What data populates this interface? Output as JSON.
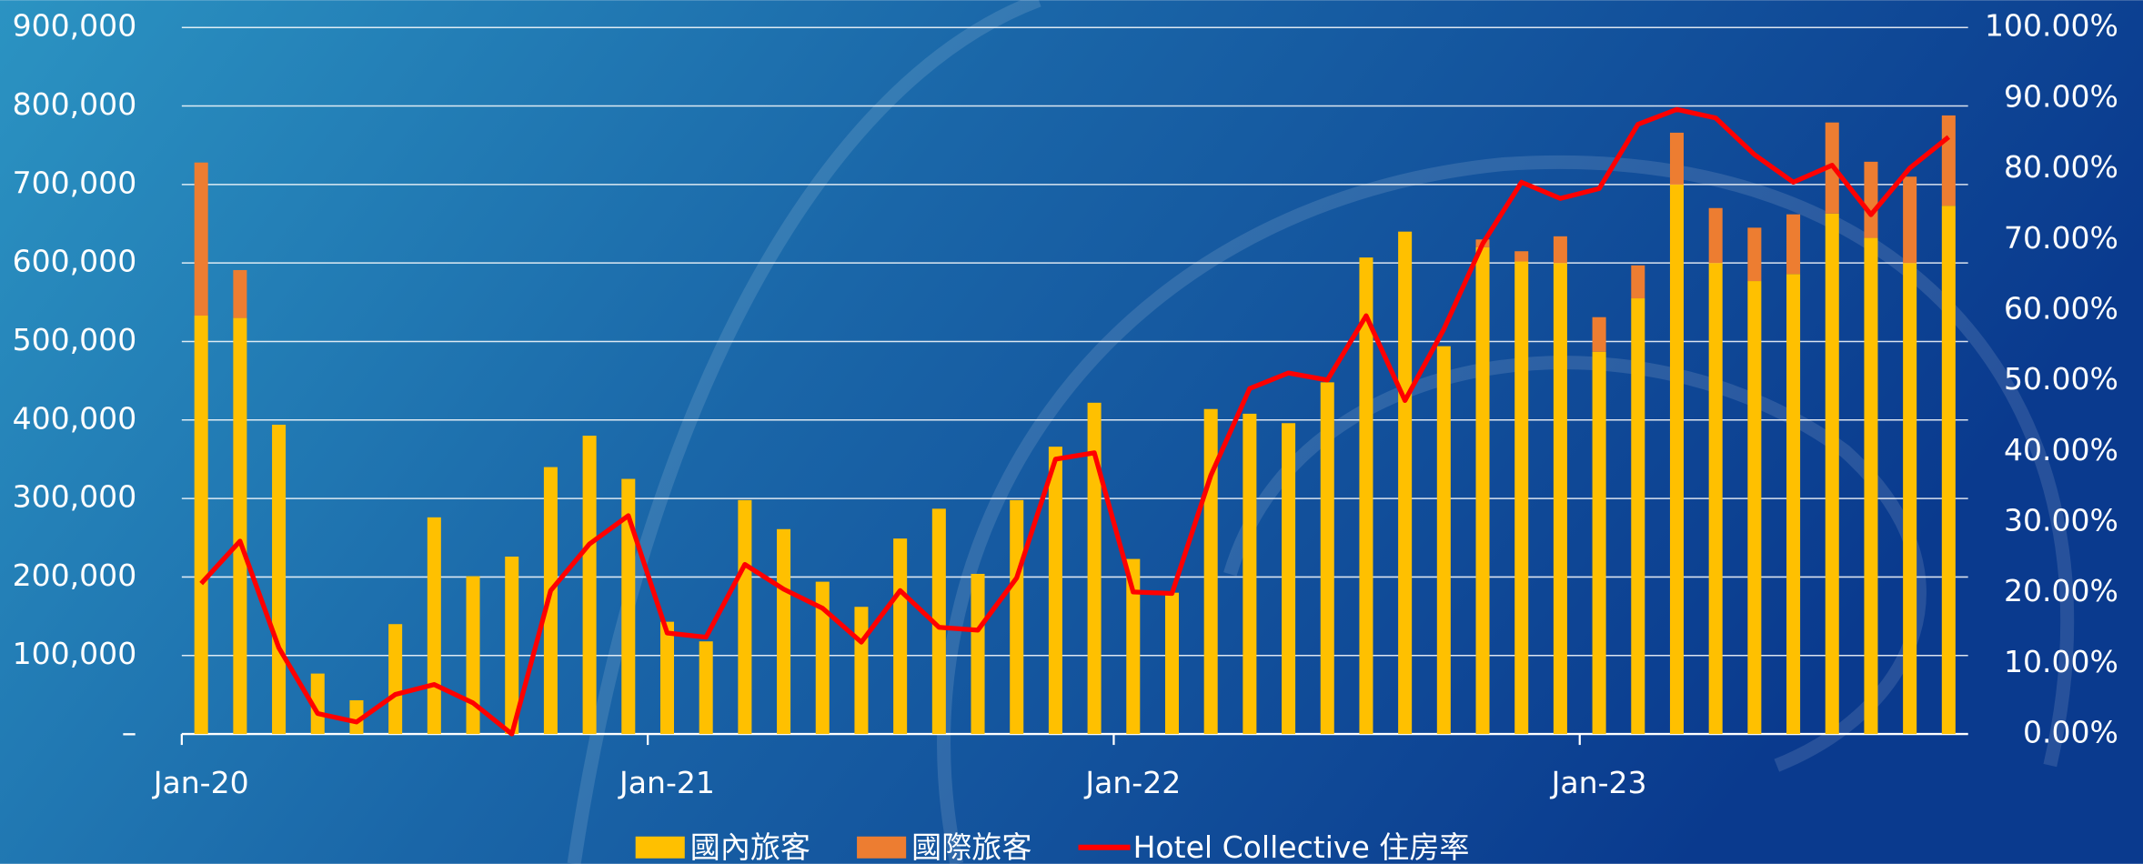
{
  "chart_data": {
    "type": "bar",
    "stacked": true,
    "categories": [
      "Jan-20",
      null,
      null,
      null,
      null,
      null,
      null,
      null,
      null,
      null,
      null,
      null,
      "Jan-21",
      null,
      null,
      null,
      null,
      null,
      null,
      null,
      null,
      null,
      null,
      null,
      "Jan-22",
      null,
      null,
      null,
      null,
      null,
      null,
      null,
      null,
      null,
      null,
      null,
      "Jan-23",
      null,
      null,
      null,
      null,
      null,
      null,
      null,
      null,
      null
    ],
    "series": [
      {
        "name": "國內旅客",
        "color": "#ffc000",
        "values": [
          533,
          530,
          394,
          77,
          43,
          140,
          276,
          201,
          226,
          340,
          380,
          325,
          143,
          118,
          298,
          261,
          194,
          162,
          249,
          287,
          204,
          298,
          366,
          422,
          223,
          180,
          414,
          408,
          396,
          448,
          607,
          640,
          494,
          620,
          602,
          600,
          487,
          555,
          700,
          600,
          577,
          586,
          663,
          632,
          600,
          673
        ]
      },
      {
        "name": "國際旅客",
        "color": "#ed7d31",
        "values": [
          195,
          61,
          0,
          0,
          0,
          0,
          0,
          0,
          0,
          0,
          0,
          0,
          0,
          0,
          0,
          0,
          0,
          0,
          0,
          0,
          0,
          0,
          0,
          0,
          0,
          0,
          0,
          0,
          0,
          0,
          0,
          0,
          0,
          10,
          13,
          34,
          44,
          42,
          66,
          70,
          68,
          76,
          116,
          97,
          110,
          115
        ]
      },
      {
        "name": "Hotel Collective 住房率",
        "color": "#ff0000",
        "type": "line",
        "axis": "y2",
        "values": [
          21.3,
          27.3,
          12.2,
          2.9,
          1.7,
          5.6,
          7.0,
          4.4,
          0,
          20.3,
          26.9,
          30.9,
          14.3,
          13.7,
          24.0,
          20.5,
          17.8,
          13.0,
          20.3,
          15.1,
          14.7,
          22.1,
          38.9,
          39.8,
          20.1,
          19.9,
          36.6,
          48.9,
          51.1,
          50.1,
          59.2,
          47.2,
          57.3,
          69.4,
          78.1,
          75.8,
          77.2,
          86.3,
          88.4,
          87.2,
          82.0,
          78.1,
          80.5,
          73.5,
          80.1,
          84.5
        ]
      }
    ],
    "ylim": [
      0,
      900
    ],
    "yticks": [
      {
        "value": 0,
        "label": "–"
      },
      {
        "value": 100,
        "label": "100,000"
      },
      {
        "value": 200,
        "label": "200,000"
      },
      {
        "value": 300,
        "label": "300,000"
      },
      {
        "value": 400,
        "label": "400,000"
      },
      {
        "value": 500,
        "label": "500,000"
      },
      {
        "value": 600,
        "label": "600,000"
      },
      {
        "value": 700,
        "label": "700,000"
      },
      {
        "value": 800,
        "label": "800,000"
      },
      {
        "value": 900,
        "label": "900,000"
      }
    ],
    "y2lim": [
      0,
      100
    ],
    "y2ticks": [
      {
        "value": 0,
        "label": "0.00%"
      },
      {
        "value": 10,
        "label": "10.00%"
      },
      {
        "value": 20,
        "label": "20.00%"
      },
      {
        "value": 30,
        "label": "30.00%"
      },
      {
        "value": 40,
        "label": "40.00%"
      },
      {
        "value": 50,
        "label": "50.00%"
      },
      {
        "value": 60,
        "label": "60.00%"
      },
      {
        "value": 70,
        "label": "70.00%"
      },
      {
        "value": 80,
        "label": "80.00%"
      },
      {
        "value": 90,
        "label": "90.00%"
      },
      {
        "value": 100,
        "label": "100.00%"
      }
    ],
    "grid": true,
    "legend": "bottom"
  }
}
